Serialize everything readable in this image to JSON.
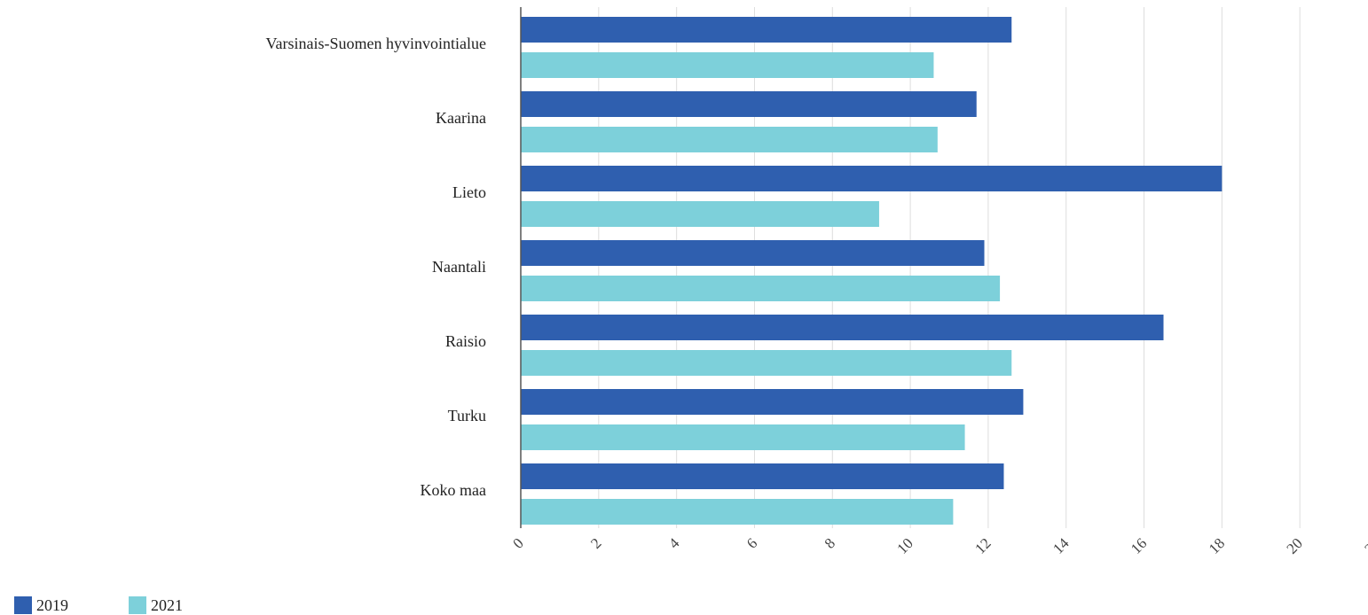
{
  "chart_data": {
    "type": "bar",
    "orientation": "horizontal",
    "categories": [
      "Varsinais-Suomen hyvinvointialue",
      "Kaarina",
      "Lieto",
      "Naantali",
      "Raisio",
      "Turku",
      "Koko maa"
    ],
    "series": [
      {
        "name": "2019",
        "color": "#2f5faf",
        "values": [
          12.6,
          11.7,
          18.0,
          11.9,
          16.5,
          12.9,
          12.4
        ]
      },
      {
        "name": "2021",
        "color": "#7dd0da",
        "values": [
          10.6,
          10.7,
          9.2,
          12.3,
          12.6,
          11.4,
          11.1
        ]
      }
    ],
    "xlim": [
      0,
      22
    ],
    "xticks": [
      0,
      2,
      4,
      6,
      8,
      10,
      12,
      14,
      16,
      18,
      20,
      22
    ],
    "grid": true,
    "legend_position": "bottom-left",
    "title": "",
    "xlabel": "",
    "ylabel": ""
  },
  "legend": {
    "items": [
      {
        "label": "2019",
        "color": "#2f5faf"
      },
      {
        "label": "2021",
        "color": "#7dd0da"
      }
    ]
  }
}
